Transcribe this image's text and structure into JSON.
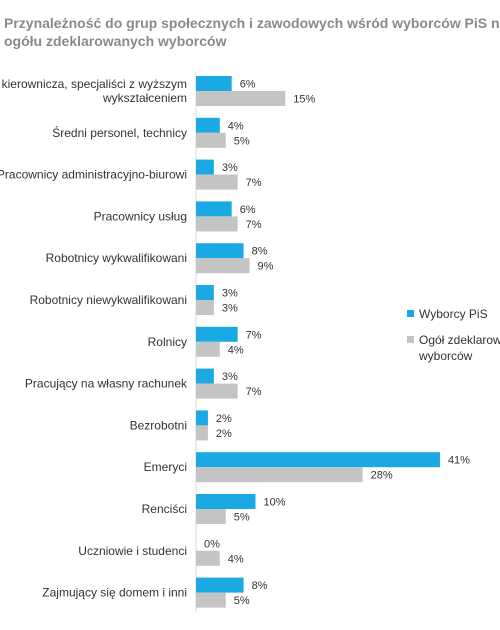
{
  "chart_data": {
    "type": "bar",
    "orientation": "horizontal",
    "title_lines": [
      "Przynależność do grup społecznych i zawodowych wśród wyborców PiS na tl",
      "ogółu zdeklarowanych wyborców"
    ],
    "categories": [
      [
        "a kierownicza, specjaliści z wyższym",
        "wykształceniem"
      ],
      [
        "Średni personel, technicy"
      ],
      [
        "Pracownicy administracyjno-biurowi"
      ],
      [
        "Pracownicy usług"
      ],
      [
        "Robotnicy wykwalifikowani"
      ],
      [
        "Robotnicy niewykwalifikowani"
      ],
      [
        "Rolnicy"
      ],
      [
        "Pracujący na własny rachunek"
      ],
      [
        "Bezrobotni"
      ],
      [
        "Emeryci"
      ],
      [
        "Renciści"
      ],
      [
        "Uczniowie i studenci"
      ],
      [
        "Zajmujący się domem i inni"
      ]
    ],
    "series": [
      {
        "name": "Wyborcy PiS",
        "color": "#1aa9e2",
        "values": [
          6,
          4,
          3,
          6,
          8,
          3,
          7,
          3,
          2,
          41,
          10,
          0,
          8
        ],
        "labels": [
          "6%",
          "4%",
          "3%",
          "6%",
          "8%",
          "3%",
          "7%",
          "3%",
          "2%",
          "41%",
          "10%",
          "0%",
          "8%"
        ]
      },
      {
        "name_lines": [
          "Ogół zdeklarowa",
          "wyborców"
        ],
        "color": "#c4c4c4",
        "values": [
          15,
          5,
          7,
          7,
          9,
          3,
          4,
          7,
          2,
          28,
          5,
          4,
          5
        ],
        "labels": [
          "15%",
          "5%",
          "7%",
          "7%",
          "9%",
          "3%",
          "4%",
          "7%",
          "2%",
          "28%",
          "5%",
          "4%",
          "5%"
        ]
      }
    ],
    "xlim": [
      0,
      41
    ],
    "grid": false,
    "legend_position": "right"
  }
}
